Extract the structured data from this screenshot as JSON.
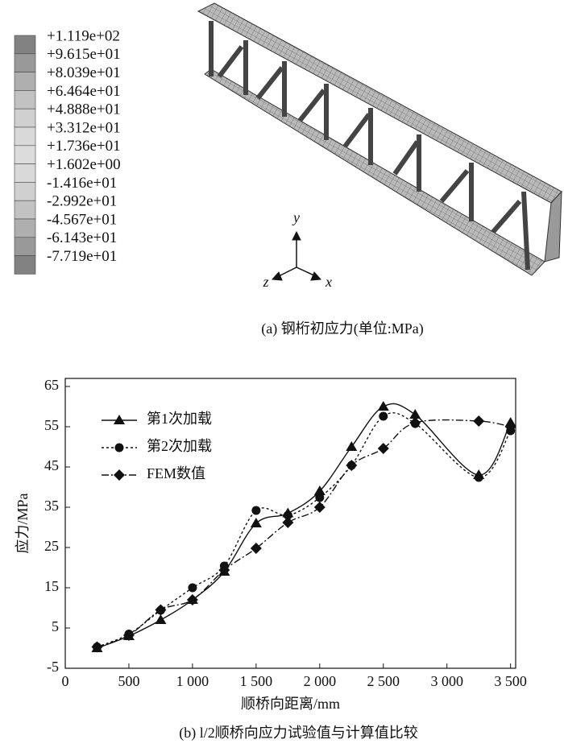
{
  "contour_legend": {
    "labels": [
      "+1.119e+02",
      "+9.615e+01",
      "+8.039e+01",
      "+6.464e+01",
      "+4.888e+01",
      "+3.312e+01",
      "+1.736e+01",
      "+1.602e+00",
      "-1.416e+01",
      "-2.992e+01",
      "-4.567e+01",
      "-6.143e+01",
      "-7.719e+01"
    ]
  },
  "axes_triad": {
    "y": "y",
    "z": "z",
    "x": "x"
  },
  "caption": "(a) 钢桁初应力(单位:MPa)",
  "chart_data": {
    "type": "line",
    "caption": "(b) l/2顺桥向应力试验值与计算值比较",
    "x_label": "顺桥向距离/mm",
    "y_label": "应力/MPa",
    "x": [
      250,
      500,
      750,
      1000,
      1250,
      1500,
      1750,
      2000,
      2250,
      2500,
      2750,
      3250,
      3500
    ],
    "xlim": [
      0,
      3540
    ],
    "ylim": [
      -5,
      67
    ],
    "xticks": [
      0,
      500,
      {
        "value": 1000,
        "label": "1 000"
      },
      {
        "value": 1500,
        "label": "1 500"
      },
      {
        "value": 2000,
        "label": "2 000"
      },
      {
        "value": 2500,
        "label": "2 500"
      },
      {
        "value": 3000,
        "label": "3 000"
      },
      {
        "value": 3500,
        "label": "3 500"
      }
    ],
    "yticks": [
      -5,
      5,
      15,
      25,
      35,
      45,
      55,
      65
    ],
    "legend": "upper left",
    "series": [
      {
        "name": "第1次加载",
        "color": "#111111",
        "linestyle": "solid",
        "marker": "triangle",
        "values": [
          0,
          3,
          7,
          12,
          19,
          31,
          33.5,
          39,
          50,
          60,
          58,
          43,
          56
        ]
      },
      {
        "name": "第2次加载",
        "color": "#111111",
        "linestyle": "dotted",
        "marker": "circle",
        "values": [
          0.3,
          3.5,
          9.4,
          15,
          20.4,
          34.2,
          33,
          37.4,
          45.4,
          57.6,
          55.8,
          42.4,
          54
        ]
      },
      {
        "name": "FEM数值",
        "color": "#111111",
        "linestyle": "dashdot",
        "marker": "diamond",
        "values": [
          0.3,
          3.2,
          9.5,
          12,
          19.4,
          24.8,
          31.2,
          35,
          45.4,
          49.6,
          56,
          56.4,
          55
        ]
      }
    ]
  }
}
